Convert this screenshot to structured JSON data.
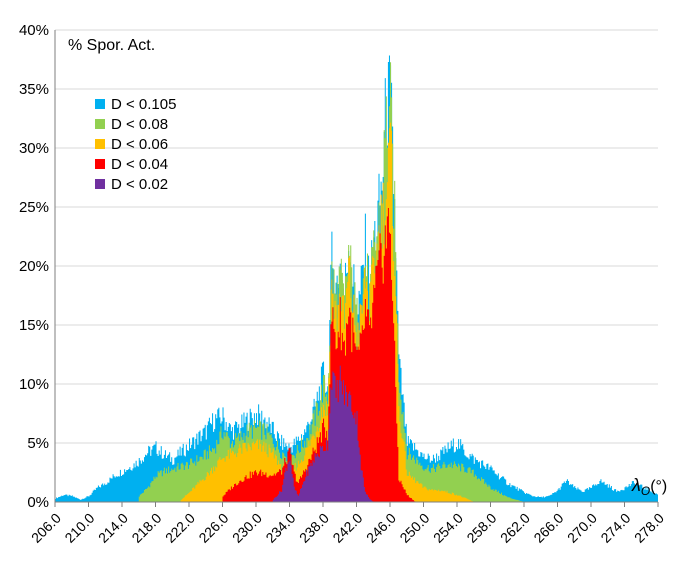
{
  "chart_data": {
    "type": "area",
    "stacked": false,
    "title": "",
    "ylabel": "% Spor. Act.",
    "xlabel_symbol": "λ",
    "xlabel_subscript": "O",
    "xlabel_unit": "(°)",
    "xlim": [
      206.0,
      278.0
    ],
    "ylim": [
      0,
      40
    ],
    "y_unit": "%",
    "y_ticks": [
      0,
      5,
      10,
      15,
      20,
      25,
      30,
      35,
      40
    ],
    "y_tick_labels": [
      "0%",
      "5%",
      "10%",
      "15%",
      "20%",
      "25%",
      "30%",
      "35%",
      "40%"
    ],
    "x_ticks": [
      206,
      210,
      214,
      218,
      222,
      226,
      230,
      234,
      238,
      242,
      246,
      250,
      254,
      258,
      262,
      266,
      270,
      274,
      278
    ],
    "x_tick_labels": [
      "206.0",
      "210.0",
      "214.0",
      "218.0",
      "222.0",
      "226.0",
      "230.0",
      "234.0",
      "238.0",
      "242.0",
      "246.0",
      "250.0",
      "254.0",
      "258.0",
      "262.0",
      "266.0",
      "270.0",
      "274.0",
      "278.0"
    ],
    "grid": "horizontal",
    "legend_position": "top-left",
    "legend_draw_order": [
      "D < 0.105",
      "D < 0.08",
      "D < 0.06",
      "D < 0.04",
      "D < 0.02"
    ],
    "series": [
      {
        "name": "D < 0.105",
        "color": "#00b0f0",
        "x": [
          206,
          207,
          208,
          209,
          210,
          211,
          212,
          213,
          214,
          215,
          216,
          217,
          218,
          219,
          220,
          221,
          222,
          223,
          224,
          225,
          226,
          227,
          228,
          229,
          230,
          231,
          232,
          233,
          234,
          235,
          236,
          237,
          238,
          238.5,
          239,
          239.5,
          240,
          240.5,
          241,
          241.5,
          242,
          242.5,
          243,
          243.5,
          244,
          244.5,
          245,
          245.5,
          246,
          246.5,
          247,
          248,
          249,
          250,
          251,
          252,
          253,
          254,
          255,
          256,
          257,
          258,
          259,
          260,
          261,
          262,
          263,
          264,
          265,
          266,
          267,
          268,
          269,
          270,
          271,
          272,
          273,
          274,
          275,
          276,
          277,
          278
        ],
        "y": [
          0.3,
          0.6,
          0.5,
          0.2,
          0.5,
          1.2,
          1.6,
          2.2,
          2.6,
          3.0,
          3.5,
          4.2,
          4.6,
          4.0,
          3.6,
          4.2,
          4.8,
          5.4,
          6.0,
          7.0,
          7.2,
          6.0,
          6.4,
          7.0,
          7.4,
          7.0,
          6.0,
          5.0,
          4.6,
          5.2,
          6.2,
          8.0,
          10.8,
          9.5,
          20.5,
          18.0,
          20.0,
          17.5,
          22.0,
          19.0,
          16.0,
          18.0,
          21.5,
          18.0,
          22.0,
          24.0,
          27.0,
          33.5,
          34.0,
          25.0,
          12.0,
          5.0,
          4.5,
          3.8,
          3.6,
          4.0,
          4.6,
          5.0,
          4.2,
          3.6,
          3.2,
          2.8,
          2.2,
          1.6,
          1.2,
          0.8,
          0.5,
          0.4,
          0.5,
          1.0,
          1.8,
          1.2,
          0.9,
          1.2,
          1.8,
          1.4,
          0.9,
          1.2,
          1.6,
          1.3,
          1.0,
          0.6
        ]
      },
      {
        "name": "D < 0.08",
        "color": "#92d050",
        "x": [
          216,
          217,
          218,
          219,
          220,
          221,
          222,
          223,
          224,
          225,
          226,
          227,
          228,
          229,
          230,
          231,
          232,
          233,
          234,
          235,
          236,
          237,
          238,
          238.5,
          239,
          239.5,
          240,
          240.5,
          241,
          241.5,
          242,
          242.5,
          243,
          243.5,
          244,
          244.5,
          245,
          245.5,
          246,
          246.5,
          247,
          248,
          249,
          250,
          251,
          252,
          253,
          254,
          255,
          256,
          257,
          258,
          259,
          260,
          261,
          262
        ],
        "y": [
          0.5,
          1.2,
          2.2,
          2.6,
          2.8,
          3.0,
          3.2,
          3.6,
          4.0,
          4.6,
          6.0,
          5.0,
          5.4,
          6.0,
          6.2,
          6.0,
          5.2,
          4.2,
          3.8,
          4.4,
          5.4,
          7.2,
          9.8,
          9.0,
          19.5,
          17.0,
          19.0,
          16.5,
          21.0,
          18.0,
          15.5,
          17.0,
          20.5,
          17.0,
          21.0,
          23.0,
          26.0,
          32.0,
          33.0,
          24.0,
          11.0,
          4.2,
          3.6,
          3.0,
          2.8,
          3.0,
          3.2,
          3.0,
          2.8,
          2.4,
          1.8,
          1.2,
          0.8,
          0.4,
          0.2,
          0.0
        ]
      },
      {
        "name": "D < 0.06",
        "color": "#ffc000",
        "x": [
          221,
          222,
          223,
          224,
          225,
          226,
          227,
          228,
          229,
          230,
          231,
          232,
          233,
          234,
          235,
          236,
          237,
          238,
          238.5,
          239,
          239.5,
          240,
          240.5,
          241,
          241.5,
          242,
          242.5,
          243,
          243.5,
          244,
          244.5,
          245,
          245.5,
          246,
          246.5,
          247,
          248,
          249,
          250,
          251,
          252,
          253,
          254,
          255,
          256
        ],
        "y": [
          0.2,
          0.8,
          1.5,
          2.2,
          3.0,
          3.8,
          4.0,
          4.4,
          4.6,
          4.8,
          4.6,
          4.0,
          3.0,
          2.6,
          3.2,
          4.4,
          6.0,
          8.2,
          7.8,
          18.0,
          15.5,
          17.5,
          15.0,
          19.5,
          16.5,
          14.0,
          15.5,
          19.0,
          16.0,
          19.5,
          21.5,
          24.5,
          26.0,
          30.0,
          21.0,
          8.0,
          2.4,
          1.8,
          1.2,
          1.0,
          1.0,
          0.8,
          0.6,
          0.3,
          0.0
        ]
      },
      {
        "name": "D < 0.04",
        "color": "#ff0000",
        "x": [
          226,
          227,
          228,
          229,
          230,
          231,
          232,
          233,
          233.5,
          234,
          234.5,
          235,
          236,
          237,
          238,
          238.5,
          239,
          239.5,
          240,
          240.5,
          241,
          241.5,
          242,
          242.5,
          243,
          243.5,
          244,
          244.5,
          245,
          245.5,
          246,
          246.5,
          247,
          248,
          249
        ],
        "y": [
          0.5,
          1.2,
          1.8,
          2.2,
          2.5,
          2.4,
          2.3,
          2.6,
          3.5,
          4.2,
          2.4,
          1.6,
          3.0,
          4.5,
          6.2,
          6.0,
          16.0,
          13.5,
          15.5,
          13.0,
          16.5,
          14.0,
          12.0,
          13.0,
          16.0,
          14.0,
          17.0,
          19.0,
          21.0,
          22.5,
          23.5,
          12.0,
          2.0,
          0.6,
          0.0
        ]
      },
      {
        "name": "D < 0.02",
        "color": "#7030a0",
        "x": [
          232,
          233,
          233.5,
          234,
          234.5,
          235,
          236,
          237,
          238,
          238.5,
          239,
          239.5,
          240,
          240.5,
          241,
          241.5,
          242,
          242.5,
          243,
          243.5,
          244
        ],
        "y": [
          0.2,
          1.0,
          2.8,
          3.8,
          1.2,
          0.5,
          2.4,
          3.8,
          4.6,
          5.0,
          11.0,
          9.0,
          10.5,
          9.0,
          9.0,
          8.0,
          7.0,
          3.0,
          0.8,
          0.3,
          0.0
        ]
      }
    ]
  }
}
